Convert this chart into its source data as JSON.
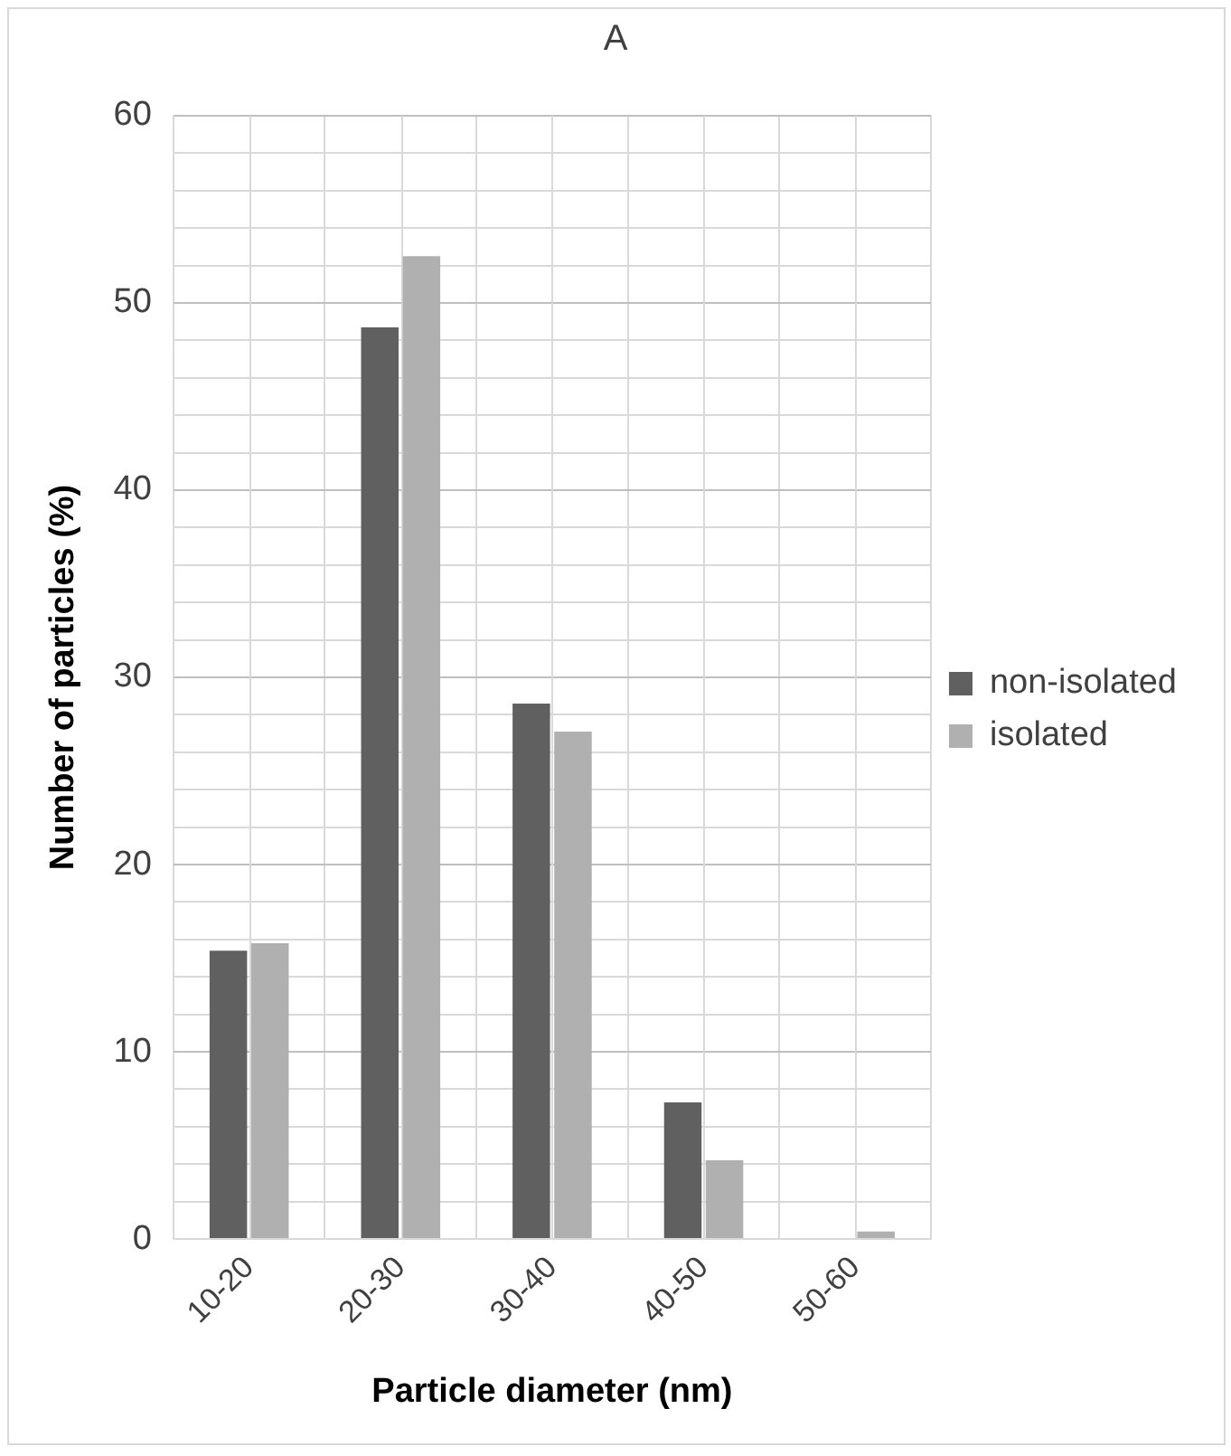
{
  "chart_data": {
    "type": "bar",
    "title": "A",
    "xlabel": "Particle diameter (nm)",
    "ylabel": "Number of particles (%)",
    "categories": [
      "10-20",
      "20-30",
      "30-40",
      "40-50",
      "50-60"
    ],
    "series": [
      {
        "name": "non-isolated",
        "color": "#606060",
        "values": [
          15.4,
          48.7,
          28.6,
          7.3,
          0
        ]
      },
      {
        "name": "isolated",
        "color": "#b0b0b0",
        "values": [
          15.8,
          52.5,
          27.1,
          4.2,
          0.4
        ]
      }
    ],
    "ylim": [
      0,
      60
    ],
    "yticks": [
      0,
      {
        "value": 2,
        "label": null
      },
      {
        "value": 4,
        "label": null
      },
      {
        "value": 6,
        "label": null
      },
      {
        "value": 8,
        "label": null
      },
      10,
      {
        "value": 12,
        "label": null
      },
      {
        "value": 14,
        "label": null
      },
      {
        "value": 16,
        "label": null
      },
      {
        "value": 18,
        "label": null
      },
      20,
      {
        "value": 22,
        "label": null
      },
      {
        "value": 24,
        "label": null
      },
      {
        "value": 26,
        "label": null
      },
      {
        "value": 28,
        "label": null
      },
      30,
      {
        "value": 32,
        "label": null
      },
      {
        "value": 34,
        "label": null
      },
      {
        "value": 36,
        "label": null
      },
      {
        "value": 38,
        "label": null
      },
      40,
      {
        "value": 42,
        "label": null
      },
      {
        "value": 44,
        "label": null
      },
      {
        "value": 46,
        "label": null
      },
      {
        "value": 48,
        "label": null
      },
      50,
      {
        "value": 52,
        "label": null
      },
      {
        "value": 54,
        "label": null
      },
      {
        "value": 56,
        "label": null
      },
      {
        "value": 58,
        "label": null
      },
      60
    ],
    "grid": true,
    "legend": "right"
  }
}
